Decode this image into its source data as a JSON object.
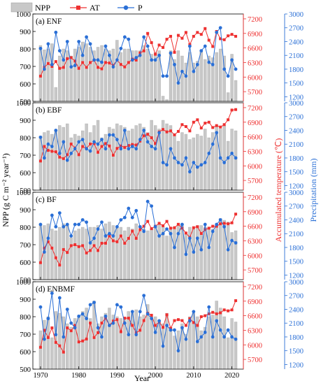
{
  "figure": {
    "x_title": "Year",
    "y_left_title": "NPP (g C m⁻² year⁻¹)",
    "y_right1_title": "Accumulated temperature (℃)",
    "y_right2_title": "Precipitation (mm)",
    "legend": [
      {
        "key": "npp",
        "label": "NPP",
        "color": "#c8c8c8"
      },
      {
        "key": "at",
        "label": "AT",
        "color": "#ee3030"
      },
      {
        "key": "p",
        "label": "P",
        "color": "#2a6fd6"
      }
    ],
    "colors": {
      "npp": "#c8c8c8",
      "npp_edge": "#9a9a9a",
      "at": "#ee3030",
      "p": "#2a6fd6"
    }
  },
  "chart_data": {
    "type": "bar",
    "years": [
      1970,
      1971,
      1972,
      1973,
      1974,
      1975,
      1976,
      1977,
      1978,
      1979,
      1980,
      1981,
      1982,
      1983,
      1984,
      1985,
      1986,
      1987,
      1988,
      1989,
      1990,
      1991,
      1992,
      1993,
      1994,
      1995,
      1996,
      1997,
      1998,
      1999,
      2000,
      2001,
      2002,
      2003,
      2004,
      2005,
      2006,
      2007,
      2008,
      2009,
      2010,
      2011,
      2012,
      2013,
      2014,
      2015,
      2016,
      2017,
      2018,
      2019,
      2020,
      2021
    ],
    "xlim": [
      1968,
      2023
    ],
    "x_ticks": [
      1970,
      1980,
      1990,
      2000,
      2010,
      2020
    ],
    "npp_ylim": [
      500,
      1000
    ],
    "npp_ticks": [
      500,
      600,
      700,
      800,
      900,
      1000
    ],
    "at_ylim": [
      5500,
      7300
    ],
    "at_ticks": [
      5700,
      6000,
      6300,
      6600,
      6900,
      7200
    ],
    "p_ylim": [
      1100,
      3000
    ],
    "p_ticks": [
      1200,
      1500,
      1800,
      2100,
      2400,
      2700,
      3000
    ],
    "panels": [
      {
        "label": "(a) ENF",
        "npp": [
          820,
          795,
          800,
          830,
          580,
          760,
          800,
          790,
          760,
          800,
          810,
          840,
          830,
          810,
          790,
          810,
          820,
          800,
          790,
          800,
          850,
          780,
          800,
          800,
          790,
          790,
          790,
          820,
          800,
          770,
          780,
          790,
          530,
          510,
          790,
          740,
          790,
          760,
          720,
          780,
          720,
          730,
          790,
          740,
          760,
          750,
          780,
          800,
          760,
          550,
          770,
          620
        ],
        "at": [
          6020,
          6200,
          6280,
          6220,
          6320,
          6180,
          6200,
          6380,
          6400,
          6330,
          6180,
          6300,
          6200,
          6300,
          6350,
          6200,
          6170,
          6300,
          6290,
          6240,
          6350,
          6260,
          6210,
          6300,
          6370,
          6350,
          6500,
          6540,
          6900,
          6710,
          6470,
          6660,
          6610,
          6780,
          6840,
          6510,
          6860,
          6800,
          6920,
          6670,
          6840,
          6920,
          6880,
          7000,
          6760,
          6630,
          6940,
          6790,
          6770,
          6850,
          6880,
          6840
        ],
        "p": [
          2250,
          1800,
          2350,
          1900,
          2600,
          2200,
          2000,
          2400,
          1850,
          1880,
          2400,
          2100,
          2500,
          2350,
          2000,
          2000,
          1950,
          2300,
          2100,
          1850,
          2000,
          2250,
          2500,
          2450,
          2000,
          2050,
          2100,
          2500,
          2300,
          2000,
          2000,
          2100,
          1650,
          1650,
          2150,
          1900,
          1500,
          1750,
          1650,
          2300,
          1750,
          1900,
          2200,
          2300,
          1950,
          1900,
          2600,
          2700,
          1800,
          1650,
          2000,
          1800
        ]
      },
      {
        "label": "(b) EBF",
        "npp": [
          810,
          830,
          840,
          820,
          840,
          870,
          860,
          880,
          800,
          820,
          810,
          840,
          880,
          830,
          870,
          900,
          800,
          820,
          860,
          850,
          880,
          870,
          860,
          840,
          850,
          870,
          880,
          860,
          830,
          900,
          870,
          850,
          900,
          880,
          870,
          820,
          780,
          830,
          820,
          790,
          800,
          820,
          810,
          850,
          800,
          830,
          870,
          850,
          870,
          780,
          850,
          840
        ],
        "at": [
          6100,
          6400,
          6320,
          6300,
          6290,
          6180,
          6150,
          6230,
          6450,
          6370,
          6230,
          6400,
          6360,
          6450,
          6460,
          6280,
          6400,
          6460,
          6410,
          6220,
          6360,
          6410,
          6380,
          6420,
          6440,
          6430,
          6510,
          6620,
          6650,
          6580,
          6460,
          6700,
          6750,
          6700,
          6720,
          6640,
          6710,
          6850,
          6810,
          6720,
          6900,
          6950,
          6780,
          6880,
          6900,
          6790,
          6830,
          6800,
          6850,
          6950,
          7150,
          7160
        ],
        "p": [
          2250,
          1800,
          2100,
          2050,
          2400,
          1900,
          2150,
          1750,
          1900,
          2000,
          2150,
          2200,
          2000,
          1950,
          2150,
          2100,
          2200,
          2000,
          2300,
          2300,
          2200,
          2000,
          2400,
          2000,
          2050,
          2000,
          2200,
          2400,
          2150,
          2050,
          2000,
          2350,
          1700,
          1650,
          2000,
          1800,
          1700,
          1650,
          1800,
          1500,
          1700,
          1600,
          1650,
          1700,
          1900,
          2100,
          2350,
          1800,
          1700,
          1800,
          1900,
          1800
        ]
      },
      {
        "label": "(c) BF",
        "npp": [
          820,
          810,
          820,
          790,
          780,
          800,
          820,
          810,
          740,
          780,
          790,
          800,
          790,
          800,
          800,
          810,
          790,
          820,
          830,
          810,
          800,
          800,
          780,
          800,
          790,
          820,
          780,
          790,
          780,
          790,
          810,
          820,
          800,
          750,
          790,
          790,
          820,
          820,
          760,
          800,
          790,
          810,
          810,
          800,
          800,
          790,
          810,
          850,
          840,
          830,
          770,
          780
        ],
        "at": [
          5850,
          6150,
          6280,
          6150,
          5950,
          5800,
          6120,
          6060,
          6200,
          6220,
          6180,
          6200,
          6050,
          6100,
          6200,
          6100,
          6250,
          6250,
          6400,
          6300,
          6280,
          6400,
          6250,
          6350,
          6500,
          6350,
          6530,
          6600,
          6700,
          6550,
          6600,
          6660,
          6610,
          6700,
          6560,
          6570,
          6640,
          6560,
          6460,
          6370,
          6570,
          6590,
          6450,
          6530,
          6560,
          6600,
          6600,
          6650,
          6660,
          6650,
          6670,
          6850
        ],
        "p": [
          2300,
          1700,
          2000,
          2500,
          2250,
          2550,
          2250,
          2300,
          2050,
          2300,
          2300,
          2400,
          2350,
          1900,
          2000,
          2200,
          2350,
          2050,
          2100,
          2050,
          2250,
          2400,
          2450,
          2650,
          2450,
          2600,
          2250,
          2150,
          2800,
          2700,
          2250,
          2050,
          2100,
          2200,
          2100,
          1800,
          2100,
          2300,
          1650,
          2000,
          1700,
          2000,
          1750,
          2300,
          1800,
          2150,
          2300,
          2400,
          2250,
          1750,
          1950,
          1900
        ]
      },
      {
        "label": "(d) ENBMF",
        "npp": [
          720,
          780,
          800,
          680,
          830,
          820,
          800,
          760,
          740,
          790,
          800,
          830,
          850,
          790,
          890,
          760,
          800,
          820,
          850,
          810,
          800,
          790,
          790,
          830,
          820,
          840,
          800,
          810,
          870,
          800,
          800,
          780,
          760,
          820,
          740,
          690,
          720,
          760,
          700,
          800,
          820,
          800,
          720,
          740,
          800,
          810,
          890,
          850,
          800,
          680,
          790,
          770
        ],
        "at": [
          5950,
          6300,
          6150,
          6350,
          6050,
          5980,
          5850,
          6350,
          6290,
          6400,
          6060,
          6080,
          6120,
          6450,
          6150,
          6250,
          6450,
          6550,
          6400,
          6490,
          6520,
          6270,
          6550,
          6550,
          6400,
          6250,
          6300,
          6500,
          6650,
          6610,
          6400,
          6470,
          6360,
          6620,
          6340,
          6500,
          6520,
          6500,
          6400,
          6540,
          6460,
          6400,
          6580,
          6600,
          6640,
          6670,
          6640,
          6660,
          6720,
          6700,
          6720,
          6910
        ],
        "p": [
          2450,
          1750,
          2200,
          2750,
          1850,
          2650,
          1800,
          2400,
          2100,
          2000,
          2250,
          2300,
          2200,
          2500,
          2550,
          2000,
          1800,
          2250,
          2050,
          2100,
          2500,
          2450,
          2100,
          1850,
          2350,
          1850,
          2350,
          2700,
          2300,
          2200,
          1900,
          2150,
          1600,
          2050,
          1950,
          1950,
          1500,
          2000,
          1750,
          2150,
          2350,
          1700,
          1800,
          1900,
          2450,
          1800,
          2150,
          1950,
          1800,
          1950,
          1800,
          1750
        ]
      }
    ]
  }
}
